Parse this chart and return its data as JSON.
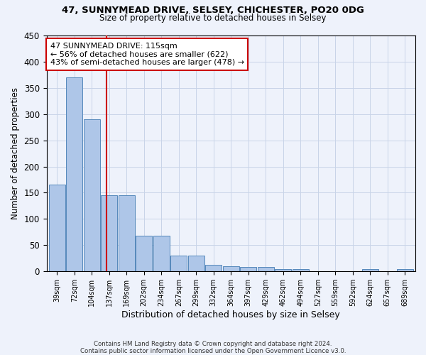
{
  "title": "47, SUNNYMEAD DRIVE, SELSEY, CHICHESTER, PO20 0DG",
  "subtitle": "Size of property relative to detached houses in Selsey",
  "xlabel": "Distribution of detached houses by size in Selsey",
  "ylabel": "Number of detached properties",
  "footer_line1": "Contains HM Land Registry data © Crown copyright and database right 2024.",
  "footer_line2": "Contains public sector information licensed under the Open Government Licence v3.0.",
  "annotation_line1": "47 SUNNYMEAD DRIVE: 115sqm",
  "annotation_line2": "← 56% of detached houses are smaller (622)",
  "annotation_line3": "43% of semi-detached houses are larger (478) →",
  "categories": [
    "39sqm",
    "72sqm",
    "104sqm",
    "137sqm",
    "169sqm",
    "202sqm",
    "234sqm",
    "267sqm",
    "299sqm",
    "332sqm",
    "364sqm",
    "397sqm",
    "429sqm",
    "462sqm",
    "494sqm",
    "527sqm",
    "559sqm",
    "592sqm",
    "624sqm",
    "657sqm",
    "689sqm"
  ],
  "values": [
    165,
    370,
    290,
    145,
    145,
    68,
    68,
    30,
    30,
    12,
    10,
    8,
    8,
    4,
    4,
    0,
    0,
    0,
    4,
    0,
    4
  ],
  "bar_color": "#aec6e8",
  "bar_edge_color": "#5588bb",
  "line_color": "#cc0000",
  "background_color": "#eef2fb",
  "grid_color": "#c8d4e8",
  "annotation_box_color": "#ffffff",
  "annotation_box_edge": "#cc0000",
  "ylim": [
    0,
    450
  ],
  "yticks": [
    0,
    50,
    100,
    150,
    200,
    250,
    300,
    350,
    400,
    450
  ],
  "line_x_index": 2.83
}
